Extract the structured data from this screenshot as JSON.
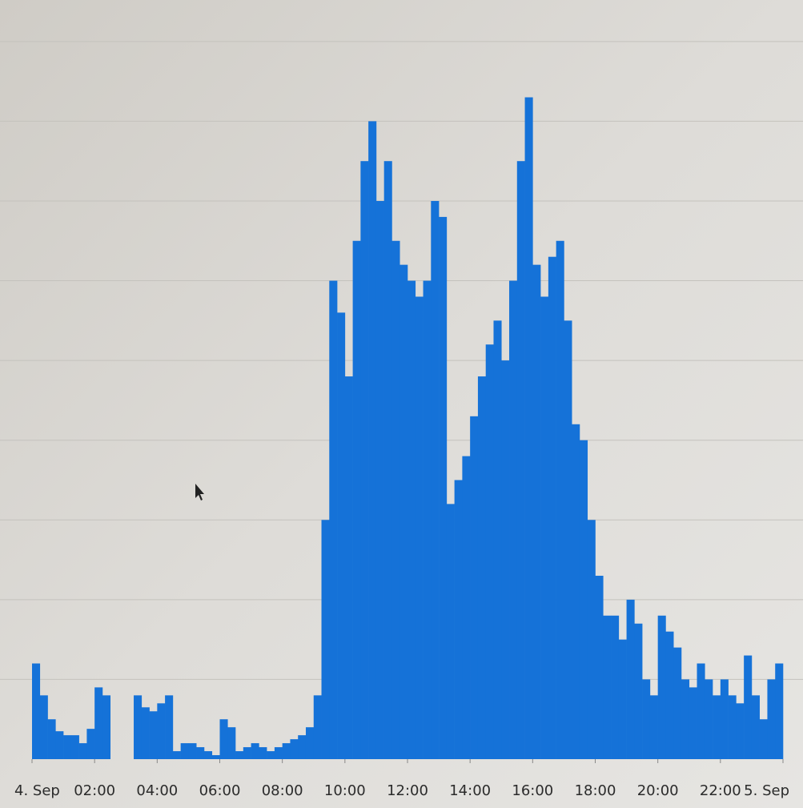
{
  "chart_data": {
    "type": "histogram",
    "bins": [
      0,
      0.25,
      0.5,
      0.75,
      1,
      1.25,
      1.5,
      1.75,
      2,
      2.25,
      2.5,
      2.75,
      3,
      3.25,
      3.5,
      3.75,
      4,
      4.25,
      4.5,
      4.75,
      5,
      5.25,
      5.5,
      5.75,
      6,
      6.25,
      6.5,
      6.75,
      7,
      7.25,
      7.5,
      7.75,
      8,
      8.25,
      8.5,
      8.75,
      9,
      9.25,
      9.5,
      9.75,
      10,
      10.25,
      10.5,
      10.75,
      11,
      11.25,
      11.5,
      11.75,
      12,
      12.25,
      12.5,
      12.75,
      13,
      13.25,
      13.5,
      13.75,
      14,
      14.25,
      14.5,
      14.75,
      15,
      15.25,
      15.5,
      15.75,
      16,
      16.25,
      16.5,
      16.75,
      17,
      17.25,
      17.5,
      17.75,
      18,
      18.25,
      18.5,
      18.75,
      19,
      19.25,
      19.5,
      19.75,
      20,
      20.25,
      20.5,
      20.75,
      21,
      21.25,
      21.5,
      21.75,
      22,
      22.25,
      22.5,
      22.75,
      23,
      23.25,
      23.5,
      23.75,
      24
    ],
    "values": [
      1.2,
      0.8,
      0.5,
      0.35,
      0.3,
      0.3,
      0.2,
      0.38,
      0.9,
      0.8,
      0,
      0,
      0,
      0.8,
      0.65,
      0.6,
      0.7,
      0.8,
      0.1,
      0.2,
      0.2,
      0.15,
      0.1,
      0.05,
      0.5,
      0.4,
      0.1,
      0.15,
      0.2,
      0.15,
      0.1,
      0.15,
      0.2,
      0.25,
      0.3,
      0.4,
      0.8,
      3.0,
      6.0,
      5.6,
      4.8,
      6.5,
      7.5,
      8.0,
      7.0,
      7.5,
      6.5,
      6.2,
      6.0,
      5.8,
      6.0,
      7.0,
      6.8,
      3.2,
      3.5,
      3.8,
      4.3,
      4.8,
      5.2,
      5.5,
      5.0,
      6.0,
      7.5,
      8.3,
      6.2,
      5.8,
      6.3,
      6.5,
      5.5,
      4.2,
      4.0,
      3.0,
      2.3,
      1.8,
      1.8,
      1.5,
      2.0,
      1.7,
      1.0,
      0.8,
      1.8,
      1.6,
      1.4,
      1.0,
      0.9,
      1.2,
      1.0,
      0.8,
      1.0,
      0.8,
      0.7,
      1.3,
      0.8,
      0.5,
      1.0,
      1.2
    ],
    "color": "#1572d8",
    "xlim": [
      0,
      24
    ],
    "xticks": [
      {
        "value": 0,
        "label": "4. Sep"
      },
      {
        "value": 2,
        "label": "02:00"
      },
      {
        "value": 4,
        "label": "04:00"
      },
      {
        "value": 6,
        "label": "06:00"
      },
      {
        "value": 8,
        "label": "08:00"
      },
      {
        "value": 10,
        "label": "10:00"
      },
      {
        "value": 12,
        "label": "12:00"
      },
      {
        "value": 14,
        "label": "14:00"
      },
      {
        "value": 16,
        "label": "16:00"
      },
      {
        "value": 18,
        "label": "18:00"
      },
      {
        "value": 20,
        "label": "20:00"
      },
      {
        "value": 22,
        "label": "22:00"
      },
      {
        "value": 24,
        "label": "5. Sep"
      }
    ],
    "ylim": [
      0,
      9.4
    ],
    "ygrid": [
      1,
      2,
      3,
      4,
      5,
      6,
      7,
      8,
      9
    ]
  }
}
